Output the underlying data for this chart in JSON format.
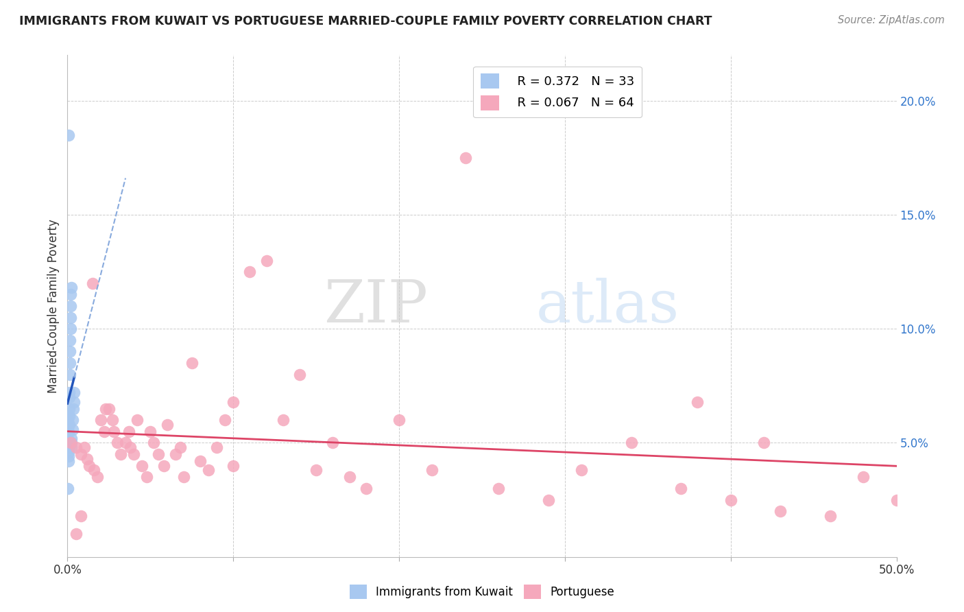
{
  "title": "IMMIGRANTS FROM KUWAIT VS PORTUGUESE MARRIED-COUPLE FAMILY POVERTY CORRELATION CHART",
  "source": "Source: ZipAtlas.com",
  "ylabel": "Married-Couple Family Poverty",
  "xlim": [
    0,
    0.5
  ],
  "ylim": [
    0,
    0.22
  ],
  "kuwait_R": 0.372,
  "kuwait_N": 33,
  "portuguese_R": 0.067,
  "portuguese_N": 64,
  "kuwait_color": "#a8c8f0",
  "kuwait_line_color": "#2255bb",
  "kuwait_dash_color": "#88aadd",
  "portuguese_color": "#f5a8bc",
  "portuguese_line_color": "#dd4466",
  "watermark_zip": "ZIP",
  "watermark_atlas": "atlas",
  "background_color": "#ffffff",
  "grid_color": "#cccccc",
  "kuwait_points_x": [
    0.0002,
    0.0003,
    0.0004,
    0.0005,
    0.0005,
    0.0006,
    0.0007,
    0.0008,
    0.0008,
    0.0009,
    0.001,
    0.001,
    0.001,
    0.0012,
    0.0013,
    0.0014,
    0.0015,
    0.0016,
    0.0017,
    0.0018,
    0.002,
    0.002,
    0.0022,
    0.0023,
    0.0024,
    0.0025,
    0.003,
    0.003,
    0.0035,
    0.004,
    0.004,
    0.0005,
    0.0002
  ],
  "kuwait_points_y": [
    0.06,
    0.055,
    0.052,
    0.05,
    0.048,
    0.046,
    0.044,
    0.042,
    0.055,
    0.058,
    0.062,
    0.065,
    0.07,
    0.072,
    0.08,
    0.085,
    0.09,
    0.095,
    0.1,
    0.105,
    0.11,
    0.115,
    0.118,
    0.048,
    0.052,
    0.05,
    0.056,
    0.06,
    0.065,
    0.068,
    0.072,
    0.185,
    0.03
  ],
  "portuguese_points_x": [
    0.002,
    0.005,
    0.008,
    0.01,
    0.012,
    0.013,
    0.015,
    0.016,
    0.018,
    0.02,
    0.022,
    0.023,
    0.025,
    0.027,
    0.028,
    0.03,
    0.032,
    0.035,
    0.037,
    0.038,
    0.04,
    0.042,
    0.045,
    0.048,
    0.05,
    0.052,
    0.055,
    0.058,
    0.06,
    0.065,
    0.068,
    0.07,
    0.075,
    0.08,
    0.085,
    0.09,
    0.095,
    0.1,
    0.11,
    0.12,
    0.13,
    0.14,
    0.15,
    0.16,
    0.17,
    0.18,
    0.2,
    0.22,
    0.24,
    0.26,
    0.29,
    0.31,
    0.34,
    0.37,
    0.4,
    0.43,
    0.46,
    0.48,
    0.5,
    0.38,
    0.42,
    0.1,
    0.005,
    0.008
  ],
  "portuguese_points_y": [
    0.05,
    0.048,
    0.045,
    0.048,
    0.043,
    0.04,
    0.12,
    0.038,
    0.035,
    0.06,
    0.055,
    0.065,
    0.065,
    0.06,
    0.055,
    0.05,
    0.045,
    0.05,
    0.055,
    0.048,
    0.045,
    0.06,
    0.04,
    0.035,
    0.055,
    0.05,
    0.045,
    0.04,
    0.058,
    0.045,
    0.048,
    0.035,
    0.085,
    0.042,
    0.038,
    0.048,
    0.06,
    0.04,
    0.125,
    0.13,
    0.06,
    0.08,
    0.038,
    0.05,
    0.035,
    0.03,
    0.06,
    0.038,
    0.175,
    0.03,
    0.025,
    0.038,
    0.05,
    0.03,
    0.025,
    0.02,
    0.018,
    0.035,
    0.025,
    0.068,
    0.05,
    0.068,
    0.01,
    0.018
  ]
}
